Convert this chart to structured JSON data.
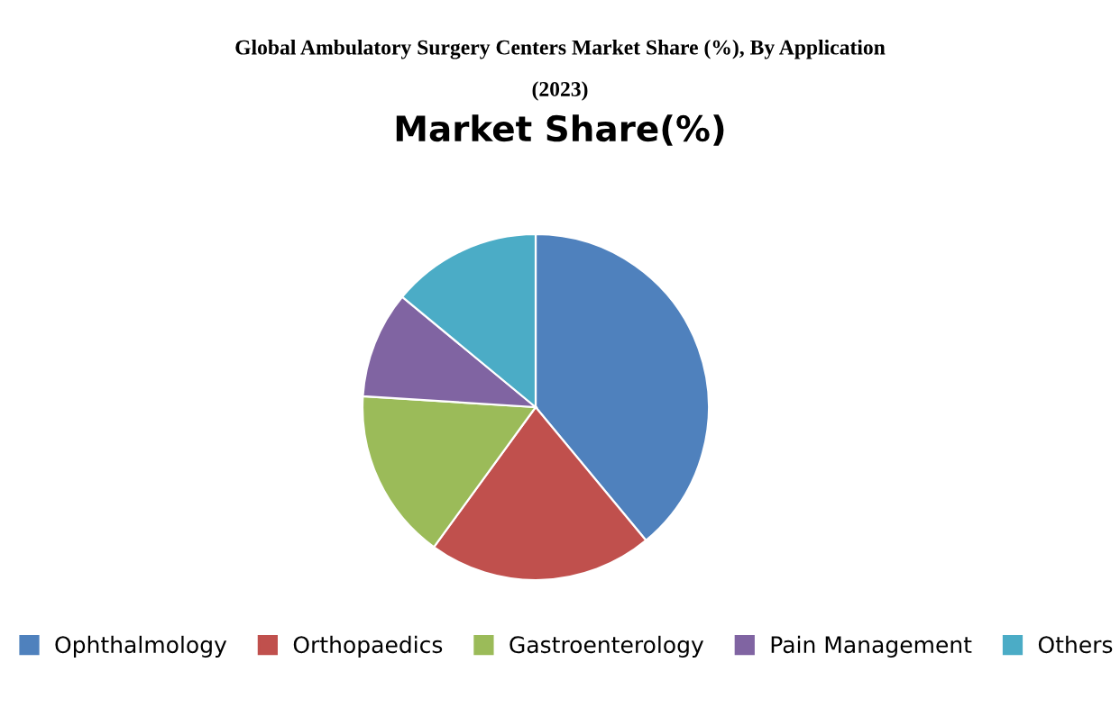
{
  "chart_data": {
    "type": "pie",
    "title": "Global Ambulatory Surgery Centers Market Share (%), By Application\n\n(2023)",
    "subtitle": "Market Share(%)",
    "categories": [
      "Ophthalmology",
      "Orthopaedics",
      "Gastroenterology",
      "Pain Management",
      "Others"
    ],
    "values": [
      39,
      21,
      16,
      10,
      14
    ],
    "colors": [
      "#4f81bd",
      "#c0504d",
      "#9bbb59",
      "#8064a2",
      "#4bacc6"
    ],
    "legend": "bottom"
  }
}
